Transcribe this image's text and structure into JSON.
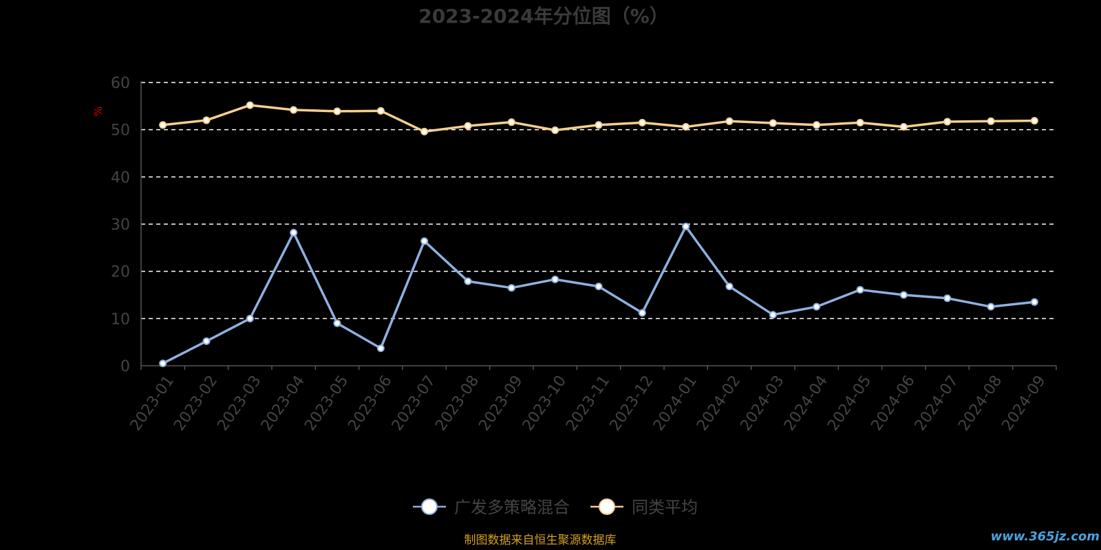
{
  "chart_data": {
    "type": "line",
    "title": "2023-2024年分位图（%）",
    "ylabel": "%",
    "ylim": [
      0,
      60
    ],
    "yticks": [
      0,
      10,
      20,
      30,
      40,
      50,
      60
    ],
    "grid": true,
    "legend_position": "bottom",
    "x": [
      "2023-01",
      "2023-02",
      "2023-03",
      "2023-04",
      "2023-05",
      "2023-06",
      "2023-07",
      "2023-08",
      "2023-09",
      "2023-10",
      "2023-11",
      "2023-12",
      "2024-01",
      "2024-02",
      "2024-03",
      "2024-04",
      "2024-05",
      "2024-06",
      "2024-07",
      "2024-08",
      "2024-09"
    ],
    "series": [
      {
        "name": "广发多策略混合",
        "color": "#8fb0e0",
        "values": [
          0.5,
          5.2,
          10.0,
          28.2,
          9.0,
          3.7,
          26.4,
          17.9,
          16.5,
          18.3,
          16.8,
          11.2,
          29.5,
          16.8,
          10.8,
          12.5,
          16.1,
          15.0,
          14.3,
          12.5,
          13.5
        ]
      },
      {
        "name": "同类平均",
        "color": "#f5cf8e",
        "values": [
          51.0,
          52.0,
          55.2,
          54.2,
          53.9,
          54.0,
          49.6,
          50.8,
          51.6,
          49.9,
          51.0,
          51.5,
          50.6,
          51.8,
          51.4,
          51.0,
          51.5,
          50.6,
          51.7,
          51.8,
          51.9
        ]
      }
    ]
  },
  "footer": {
    "source": "制图数据来自恒生聚源数据库",
    "watermark": "www.365jz.com"
  }
}
